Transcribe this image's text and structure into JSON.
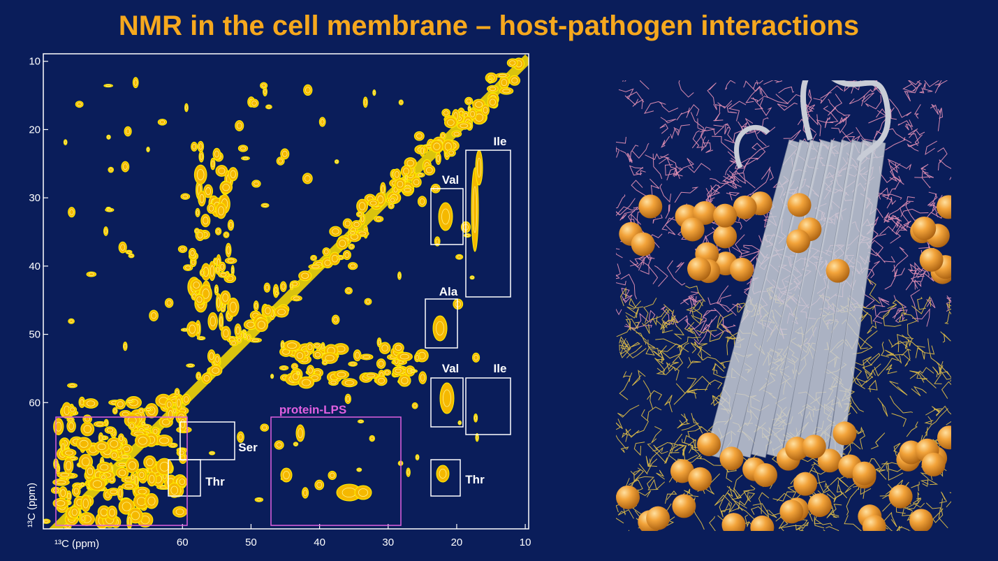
{
  "title": "NMR in the cell membrane – host-pathogen interactions",
  "spectrum": {
    "x_label": "¹³C (ppm)",
    "y_label": "¹³C (ppm)",
    "xlim": [
      80.3,
      9.5
    ],
    "ylim": [
      8.9,
      78.5
    ],
    "xticks": [
      60,
      50,
      40,
      30,
      20,
      10
    ],
    "yticks": [
      10,
      20,
      30,
      40,
      50,
      60
    ],
    "regions": [
      {
        "label": "Ile"
      },
      {
        "label": "Val"
      },
      {
        "label": "Ala"
      },
      {
        "label": "Val"
      },
      {
        "label": "Ile"
      },
      {
        "label": "Ser"
      },
      {
        "label": "Thr"
      },
      {
        "label": "Thr"
      },
      {
        "label": "protein-LPS"
      }
    ]
  }
}
